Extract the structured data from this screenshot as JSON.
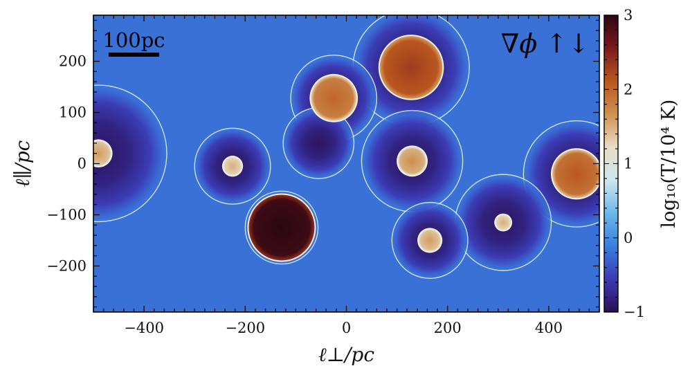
{
  "chart_data": {
    "type": "heatmap",
    "title": "",
    "xlabel": "ℓ⊥/pc",
    "ylabel": "ℓ∥/pc",
    "xlim": [
      -500,
      500
    ],
    "ylim": [
      -290,
      290
    ],
    "x_ticks": [
      -400,
      -200,
      0,
      200,
      400
    ],
    "x_tick_labels": [
      "−400",
      "−200",
      "0",
      "200",
      "400"
    ],
    "y_ticks": [
      -200,
      -100,
      0,
      100,
      200
    ],
    "y_tick_labels": [
      "−200",
      "−100",
      "0",
      "100",
      "200"
    ],
    "colorbar": {
      "label": "log₁₀(T/10⁴ K)",
      "range": [
        -1,
        3
      ],
      "ticks": [
        -1,
        0,
        1,
        2,
        3
      ],
      "tick_labels": [
        "−1",
        "0",
        "1",
        "2",
        "3"
      ],
      "colors": [
        "#2a0f56",
        "#3b3bb5",
        "#3a7ee0",
        "#6cb8e8",
        "#cfe6ef",
        "#e8ddc4",
        "#cf9150",
        "#b9561e",
        "#7a1b1e",
        "#2b0711"
      ]
    },
    "background_value": -0.2,
    "scale_bar": {
      "label": "100pc",
      "length_pc": 100
    },
    "corner_label": "∇ϕ ↑↓",
    "bubbles": [
      {
        "x": 128,
        "y": 188,
        "shell_radius": 115,
        "hot_radius": 62,
        "hot_value": 2.1
      },
      {
        "x": -25,
        "y": 128,
        "shell_radius": 85,
        "hot_radius": 45,
        "hot_value": 1.8
      },
      {
        "x": -128,
        "y": -125,
        "shell_radius": 72,
        "hot_radius": 65,
        "hot_value": 2.9
      },
      {
        "x": 130,
        "y": 5,
        "shell_radius": 100,
        "hot_radius": 28,
        "hot_value": 1.5
      },
      {
        "x": -225,
        "y": -5,
        "shell_radius": 75,
        "hot_radius": 18,
        "hot_value": 1.3
      },
      {
        "x": 455,
        "y": -20,
        "shell_radius": 105,
        "hot_radius": 48,
        "hot_value": 1.9
      },
      {
        "x": -490,
        "y": 20,
        "shell_radius": 135,
        "hot_radius": 25,
        "hot_value": 1.4
      },
      {
        "x": 310,
        "y": -115,
        "shell_radius": 95,
        "hot_radius": 15,
        "hot_value": 1.3
      },
      {
        "x": 165,
        "y": -150,
        "shell_radius": 75,
        "hot_radius": 22,
        "hot_value": 1.4
      },
      {
        "x": -55,
        "y": 40,
        "shell_radius": 70,
        "hot_radius": 0,
        "hot_value": 0
      }
    ]
  }
}
